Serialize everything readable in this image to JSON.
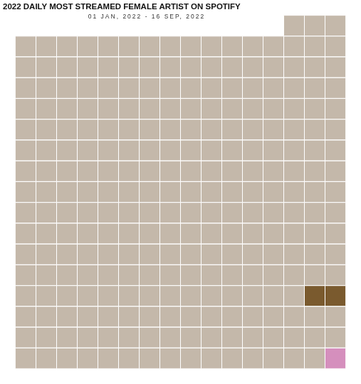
{
  "chart_data": {
    "type": "pictogram",
    "title": "2022 DAILY MOST STREAMED FEMALE ARTIST ON SPOTIFY",
    "subtitle": "01 JAN, 2022 - 16 SEP, 2022",
    "tick_labels": false,
    "grid": false,
    "colors": [
      "#c4b8aa",
      "#c4b8aa",
      "#c4b8aa",
      "#c4b8aa",
      "#c4b8aa",
      "#c4b8aa",
      "#c4b8aa",
      "#c4b8aa",
      "#c4b8aa",
      "#c4b8aa",
      "#c4b8aa",
      "#c4b8aa",
      "#c4b8aa",
      "#c4b8aa",
      "#c4b8aa",
      "#c4b8aa",
      "#c4b8aa",
      "#c4b8aa",
      "#c4b8aa",
      "#c4b8aa",
      "#c4b8aa",
      "#c4b8aa",
      "#c4b8aa",
      "#c4b8aa",
      "#c4b8aa",
      "#c4b8aa",
      "#c4b8aa",
      "#c4b8aa",
      "#c4b8aa",
      "#c4b8aa",
      "#c4b8aa",
      "#c4b8aa",
      "#c4b8aa",
      "#c4b8aa",
      "#c4b8aa",
      "#c4b8aa",
      "#c4b8aa",
      "#c4b8aa",
      "#c4b8aa",
      "#c4b8aa",
      "#c4b8aa",
      "#c4b8aa",
      "#c4b8aa",
      "#c4b8aa",
      "#c4b8aa",
      "#c4b8aa",
      "#c4b8aa",
      "#c4b8aa",
      "#c4b8aa",
      "#c4b8aa",
      "#c4b8aa",
      "#c4b8aa",
      "#c4b8aa",
      "#c4b8aa",
      "#c4b8aa",
      "#c4b8aa",
      "#c4b8aa",
      "#c4b8aa",
      "#c4b8aa",
      "#c4b8aa",
      "#c4b8aa",
      "#c4b8aa",
      "#c4b8aa",
      "#c4b8aa",
      "#c4b8aa",
      "#c4b8aa",
      "#c4b8aa",
      "#c4b8aa",
      "#c4b8aa",
      "#c4b8aa",
      "#c4b8aa",
      "#c4b8aa",
      "#c4b8aa",
      "#c4b8aa",
      "#c4b8aa",
      "#c4b8aa",
      "#c4b8aa",
      "#c4b8aa",
      "#c4b8aa",
      "#c4b8aa",
      "#c4b8aa",
      "#c4b8aa",
      "#c4b8aa",
      "#c4b8aa",
      "#c4b8aa",
      "#c4b8aa",
      "#c4b8aa",
      "#c4b8aa",
      "#c4b8aa",
      "#c4b8aa",
      "#c4b8aa",
      "#c4b8aa",
      "#c4b8aa",
      "#c4b8aa",
      "#c4b8aa",
      "#c4b8aa",
      "#c4b8aa",
      "#c4b8aa",
      "#c4b8aa",
      "#c4b8aa",
      "#c4b8aa",
      "#c4b8aa",
      "#c4b8aa",
      "#c4b8aa",
      "#c4b8aa",
      "#c4b8aa",
      "#c4b8aa",
      "#c4b8aa",
      "#c4b8aa",
      "#c4b8aa",
      "#c4b8aa",
      "#c4b8aa",
      "#c4b8aa",
      "#c4b8aa",
      "#c4b8aa",
      "#c4b8aa",
      "#c4b8aa",
      "#c4b8aa",
      "#c4b8aa",
      "#c4b8aa",
      "#c4b8aa",
      "#c4b8aa",
      "#c4b8aa",
      "#c4b8aa",
      "#c4b8aa",
      "#c4b8aa",
      "#c4b8aa",
      "#c4b8aa",
      "#c4b8aa",
      "#c4b8aa",
      "#c4b8aa",
      "#c4b8aa",
      "#c4b8aa",
      "#c4b8aa",
      "#c4b8aa",
      "#c4b8aa",
      "#c4b8aa",
      "#c4b8aa",
      "#c4b8aa",
      "#c4b8aa",
      "#c4b8aa",
      "#c4b8aa",
      "#c4b8aa",
      "#c4b8aa",
      "#c4b8aa",
      "#c4b8aa",
      "#c4b8aa",
      "#c4b8aa",
      "#c4b8aa",
      "#c4b8aa",
      "#c4b8aa",
      "#c4b8aa",
      "#c4b8aa",
      "#c4b8aa",
      "#c4b8aa",
      "#c4b8aa",
      "#c4b8aa",
      "#c4b8aa",
      "#c4b8aa",
      "#c4b8aa",
      "#c4b8aa",
      "#c4b8aa",
      "#c4b8aa",
      "#c4b8aa",
      "#c4b8aa",
      "#c4b8aa",
      "#c4b8aa",
      "#c4b8aa",
      "#c4b8aa",
      "#c4b8aa",
      "#c4b8aa",
      "#c4b8aa",
      "#c4b8aa",
      "#c4b8aa",
      "#c4b8aa",
      "#c4b8aa",
      "#c4b8aa",
      "#c4b8aa",
      "#c4b8aa",
      "#c4b8aa",
      "#c4b8aa",
      "#c4b8aa",
      "#c4b8aa",
      "#c4b8aa",
      "#c4b8aa",
      "#c4b8aa",
      "#c4b8aa",
      "#c4b8aa",
      "#c4b8aa",
      "#c4b8aa",
      "#c4b8aa",
      "#c4b8aa",
      "#c4b8aa",
      "#c4b8aa",
      "#c4b8aa",
      "#c4b8aa",
      "#c4b8aa",
      "#c4b8aa",
      "#c4b8aa",
      "#c4b8aa",
      "#c4b8aa",
      "#c4b8aa",
      "#c4b8aa",
      "#c4b8aa",
      "#c4b8aa",
      "#c4b8aa",
      "#c4b8aa",
      "#c4b8aa",
      "#c4b8aa",
      "#7a5a2e",
      "#7a5a2e",
      "#c4b8aa",
      "#c4b8aa",
      "#c4b8aa",
      "#c4b8aa",
      "#c4b8aa",
      "#c4b8aa",
      "#c4b8aa",
      "#c4b8aa",
      "#c4b8aa",
      "#c4b8aa",
      "#c4b8aa",
      "#c4b8aa",
      "#c4b8aa",
      "#c4b8aa",
      "#c4b8aa",
      "#c4b8aa",
      "#c4b8aa",
      "#c4b8aa",
      "#c4b8aa",
      "#c4b8aa",
      "#c4b8aa",
      "#c4b8aa",
      "#c4b8aa",
      "#c4b8aa",
      "#c4b8aa",
      "#c4b8aa",
      "#c4b8aa",
      "#c4b8aa",
      "#c4b8aa",
      "#c4b8aa",
      "#c4b8aa",
      "#c4b8aa",
      "#c4b8aa",
      "#c4b8aa",
      "#c4b8aa",
      "#c4b8aa",
      "#c4b8aa",
      "#c4b8aa",
      "#c4b8aa",
      "#c4b8aa",
      "#c4b8aa",
      "#c4b8aa",
      "#c4b8aa",
      "#c4b8aa",
      "#c4b8aa",
      "#c4b8aa",
      "#c4b8aa",
      "#d58fbd"
    ]
  }
}
